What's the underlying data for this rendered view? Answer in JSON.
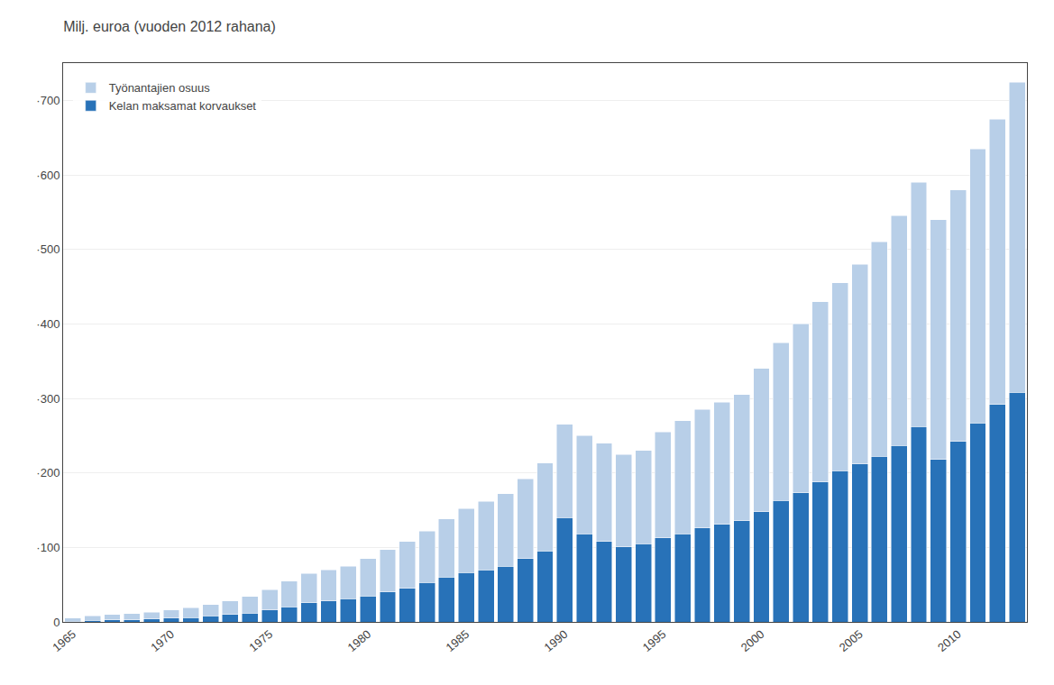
{
  "chart_data": {
    "type": "bar",
    "title": "Milj. euroa (vuoden 2012 rahana)",
    "categories": [
      "1965",
      null,
      null,
      null,
      null,
      "1970",
      null,
      null,
      null,
      null,
      "1975",
      null,
      null,
      null,
      null,
      "1980",
      null,
      null,
      null,
      null,
      "1985",
      null,
      null,
      null,
      null,
      "1990",
      null,
      null,
      null,
      null,
      "1995",
      null,
      null,
      null,
      null,
      "2000",
      null,
      null,
      null,
      null,
      "2005",
      null,
      null,
      null,
      null,
      "2010",
      null,
      null,
      null
    ],
    "stacked": true,
    "series": [
      {
        "name": "Kelan maksamat korvaukset",
        "color": "#2872b8",
        "values": [
          1,
          2,
          3,
          3,
          4,
          5,
          6,
          8,
          10,
          12,
          16,
          20,
          26,
          28,
          31,
          35,
          40,
          45,
          53,
          60,
          66,
          70,
          75,
          85,
          95,
          140,
          118,
          108,
          101,
          105,
          113,
          118,
          126,
          131,
          136,
          148,
          163,
          173,
          188,
          203,
          212,
          222,
          237,
          262,
          218,
          242,
          267,
          292,
          308
        ]
      },
      {
        "name": "Työnantajien osuus",
        "color": "#b8cfe8",
        "values": [
          4,
          6,
          7,
          8,
          9,
          11,
          13,
          15,
          18,
          22,
          27,
          35,
          39,
          42,
          44,
          50,
          57,
          63,
          69,
          78,
          86,
          92,
          97,
          107,
          118,
          125,
          132,
          132,
          124,
          125,
          142,
          152,
          159,
          164,
          169,
          192,
          212,
          227,
          242,
          252,
          268,
          288,
          308,
          328,
          322,
          338,
          368,
          383,
          416
        ]
      }
    ],
    "ylim": [
      0,
      750
    ],
    "yticks": [
      0,
      {
        "value": 100,
        "label": "·100"
      },
      {
        "value": 200,
        "label": "·200"
      },
      {
        "value": 300,
        "label": "·300"
      },
      {
        "value": 400,
        "label": "·400"
      },
      {
        "value": 500,
        "label": "·500"
      },
      {
        "value": 600,
        "label": "·600"
      },
      {
        "value": 700,
        "label": "·700"
      }
    ],
    "grid": true,
    "legend": "upper left"
  }
}
